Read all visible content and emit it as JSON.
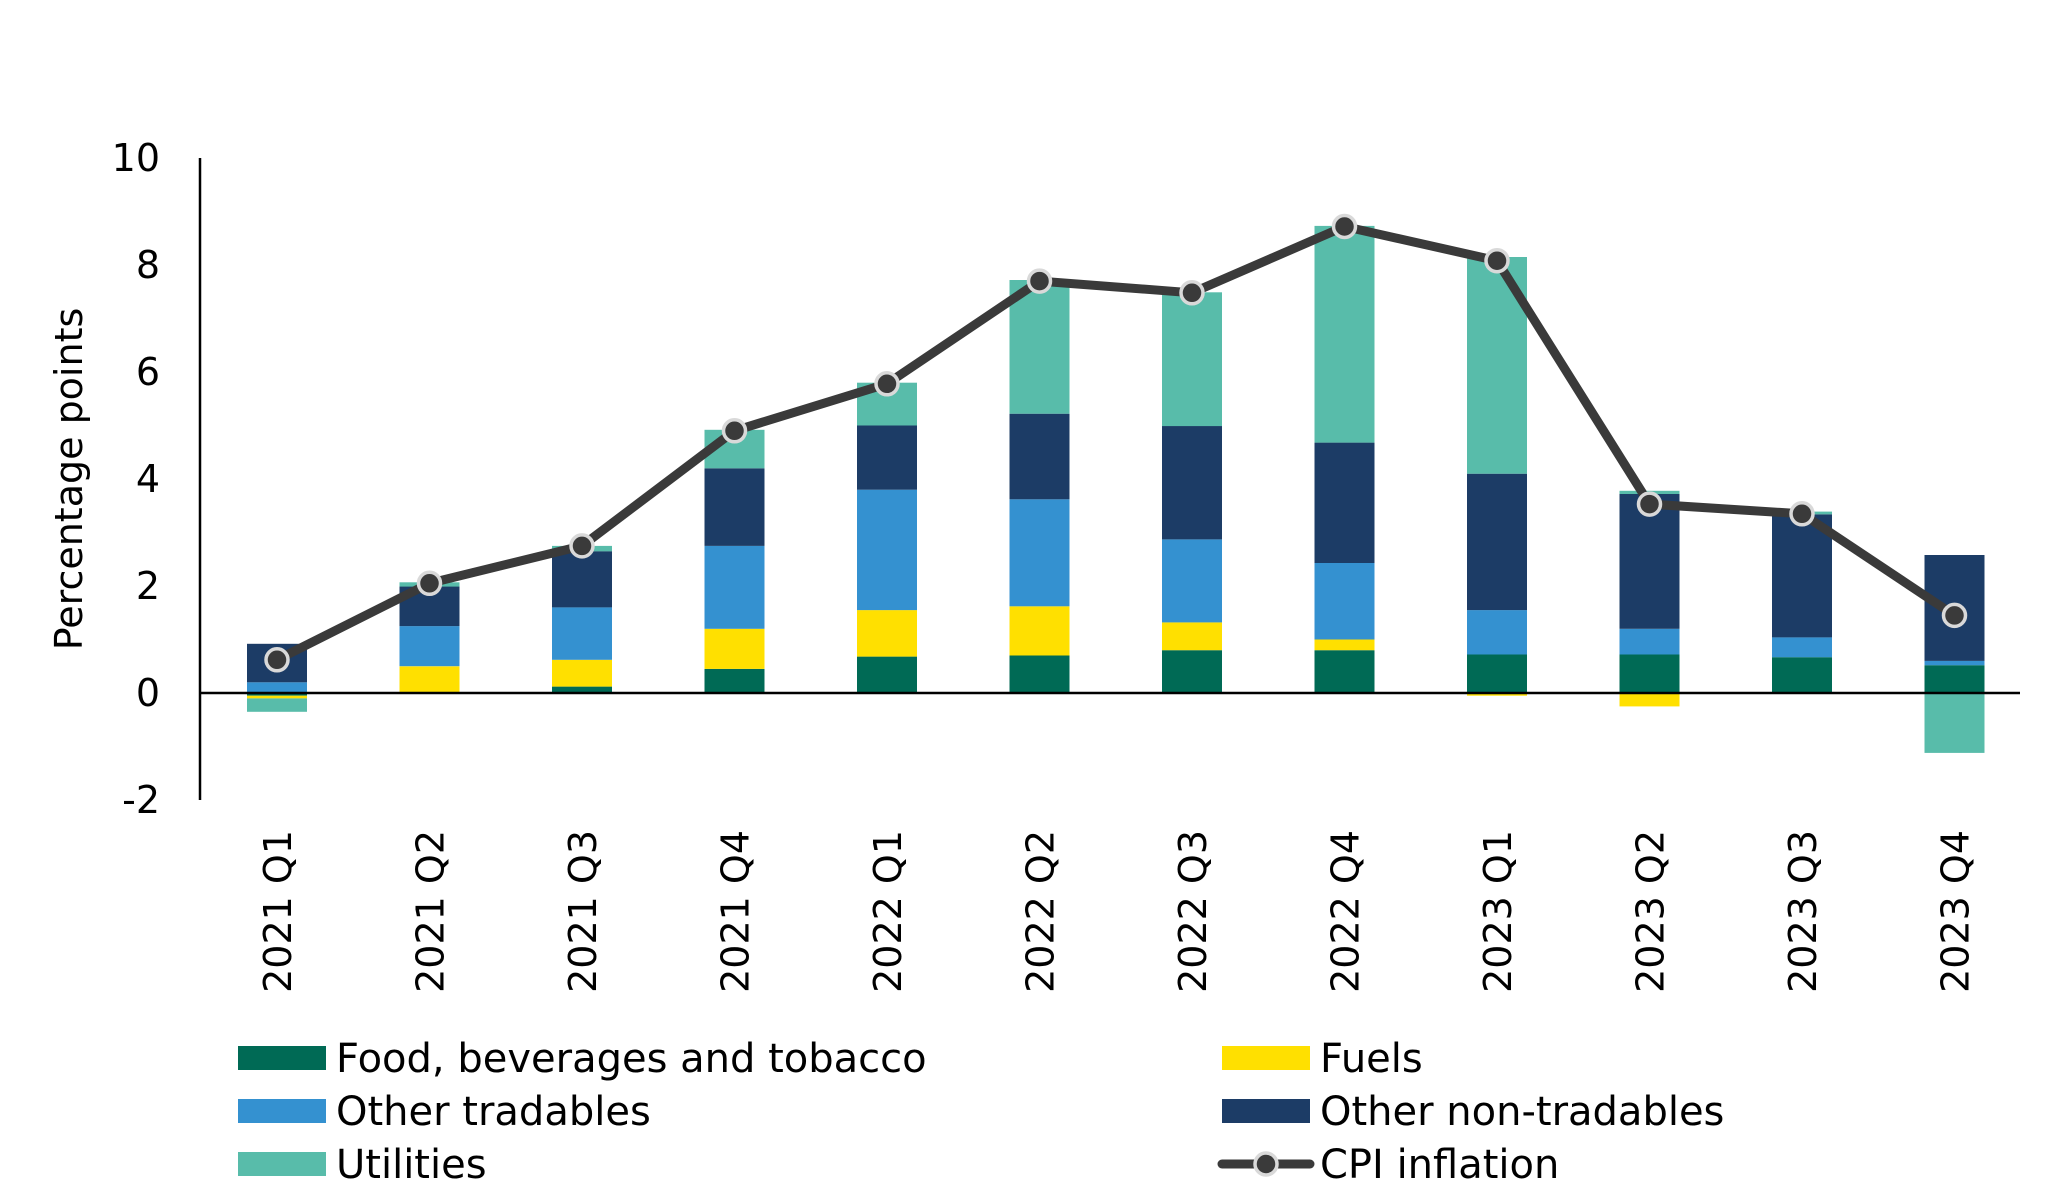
{
  "chart_data": {
    "type": "bar",
    "stacked": true,
    "ylabel": "Percentage points",
    "ylim": [
      -2,
      10
    ],
    "yticks": [
      -2,
      0,
      2,
      4,
      6,
      8,
      10
    ],
    "categories": [
      "2021 Q1",
      "2021 Q2",
      "2021 Q3",
      "2021 Q4",
      "2022 Q1",
      "2022 Q2",
      "2022 Q3",
      "2022 Q4",
      "2023 Q1",
      "2023 Q2",
      "2023 Q3",
      "2023 Q4"
    ],
    "series": [
      {
        "name": "Food, beverages and tobacco",
        "kind": "bar",
        "color": "#006a55",
        "values": [
          -0.05,
          0.0,
          0.12,
          0.45,
          0.68,
          0.7,
          0.8,
          0.8,
          0.72,
          0.72,
          0.67,
          0.52
        ]
      },
      {
        "name": "Fuels",
        "kind": "bar",
        "color": "#ffe000",
        "values": [
          -0.05,
          0.5,
          0.5,
          0.75,
          0.87,
          0.92,
          0.52,
          0.2,
          -0.05,
          -0.25,
          0.0,
          0.0
        ]
      },
      {
        "name": "Other tradables",
        "kind": "bar",
        "color": "#3491d0",
        "values": [
          0.2,
          0.75,
          0.98,
          1.55,
          2.25,
          2.0,
          1.55,
          1.43,
          0.83,
          0.48,
          0.37,
          0.08
        ]
      },
      {
        "name": "Other non-tradables",
        "kind": "bar",
        "color": "#1c3c66",
        "values": [
          0.72,
          0.74,
          1.05,
          1.45,
          1.2,
          1.6,
          2.12,
          2.25,
          2.55,
          2.52,
          2.3,
          1.98
        ]
      },
      {
        "name": "Utilities",
        "kind": "bar",
        "color": "#58bcaa",
        "values": [
          -0.25,
          0.08,
          0.1,
          0.72,
          0.8,
          2.5,
          2.5,
          4.05,
          4.05,
          0.06,
          0.05,
          -1.12
        ]
      },
      {
        "name": "CPI inflation",
        "kind": "line",
        "color": "#3a3a3a",
        "values": [
          0.62,
          2.05,
          2.75,
          4.9,
          5.78,
          7.7,
          7.48,
          8.72,
          8.08,
          3.53,
          3.35,
          1.45
        ]
      }
    ],
    "legend_position": "bottom",
    "grid": false
  }
}
